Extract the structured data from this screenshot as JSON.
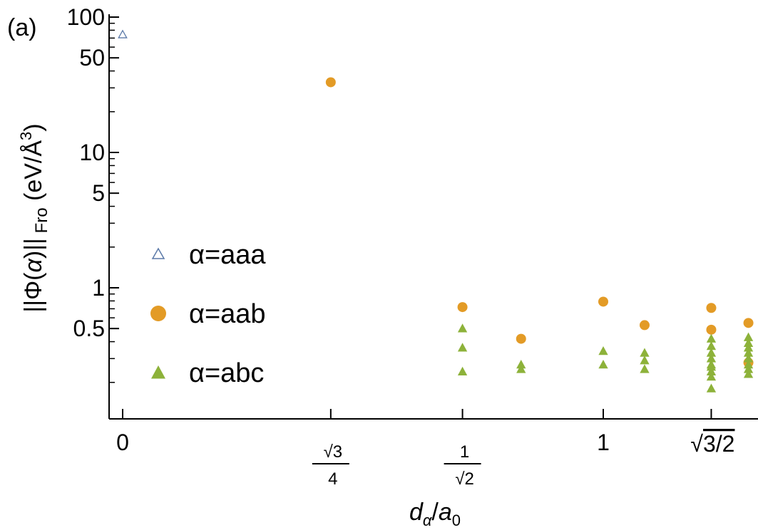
{
  "chart_data": {
    "type": "scatter",
    "panel_label": "(a)",
    "xlabel": "d_α/a_0",
    "ylabel": "||Φ(α)||_Fro (eV/Å^3)",
    "y_scale": "log",
    "ylim": [
      0.07,
      100
    ],
    "xlim": [
      -0.02,
      1.27
    ],
    "y_ticks": [
      {
        "value": 100,
        "label": "100"
      },
      {
        "value": 50,
        "label": "50"
      },
      {
        "value": 10,
        "label": "10"
      },
      {
        "value": 5,
        "label": "5"
      },
      {
        "value": 1,
        "label": "1"
      },
      {
        "value": 0.5,
        "label": "0.5"
      }
    ],
    "x_ticks": [
      {
        "value": 0,
        "label": "0",
        "kind": "text"
      },
      {
        "value": 0.433,
        "label": "√3/4",
        "kind": "frac",
        "num": "√3",
        "den": "4"
      },
      {
        "value": 0.7071,
        "label": "1/√2",
        "kind": "frac",
        "num": "1",
        "den": "√2"
      },
      {
        "value": 1.0,
        "label": "1",
        "kind": "text"
      },
      {
        "value": 1.2247,
        "label": "√3/2",
        "kind": "sqrt",
        "radicand": "3/2"
      }
    ],
    "legend": {
      "placement": "middle-left"
    },
    "series": [
      {
        "name": "α=aaa",
        "marker": "open-triangle",
        "color": "#5b79a8",
        "points": [
          [
            0.0,
            74
          ]
        ]
      },
      {
        "name": "α=aab",
        "marker": "filled-circle",
        "color": "#e39b26",
        "points": [
          [
            0.433,
            33
          ],
          [
            0.7071,
            0.72
          ],
          [
            0.829,
            0.42
          ],
          [
            1.0,
            0.79
          ],
          [
            1.086,
            0.53
          ],
          [
            1.2247,
            0.71
          ],
          [
            1.2247,
            0.49
          ],
          [
            1.302,
            0.55
          ],
          [
            1.302,
            0.28
          ]
        ]
      },
      {
        "name": "α=abc",
        "marker": "filled-triangle",
        "color": "#8db23a",
        "points": [
          [
            0.7071,
            0.5
          ],
          [
            0.7071,
            0.36
          ],
          [
            0.7071,
            0.24
          ],
          [
            0.829,
            0.27
          ],
          [
            0.829,
            0.25
          ],
          [
            1.0,
            0.34
          ],
          [
            1.0,
            0.27
          ],
          [
            1.086,
            0.33
          ],
          [
            1.086,
            0.29
          ],
          [
            1.086,
            0.25
          ],
          [
            1.2247,
            0.42
          ],
          [
            1.2247,
            0.37
          ],
          [
            1.2247,
            0.33
          ],
          [
            1.2247,
            0.3
          ],
          [
            1.2247,
            0.27
          ],
          [
            1.2247,
            0.26
          ],
          [
            1.2247,
            0.24
          ],
          [
            1.2247,
            0.22
          ],
          [
            1.2247,
            0.18
          ],
          [
            1.302,
            0.43
          ],
          [
            1.302,
            0.39
          ],
          [
            1.302,
            0.36
          ],
          [
            1.302,
            0.33
          ],
          [
            1.302,
            0.3
          ],
          [
            1.302,
            0.27
          ],
          [
            1.302,
            0.25
          ],
          [
            1.302,
            0.23
          ]
        ]
      }
    ]
  }
}
